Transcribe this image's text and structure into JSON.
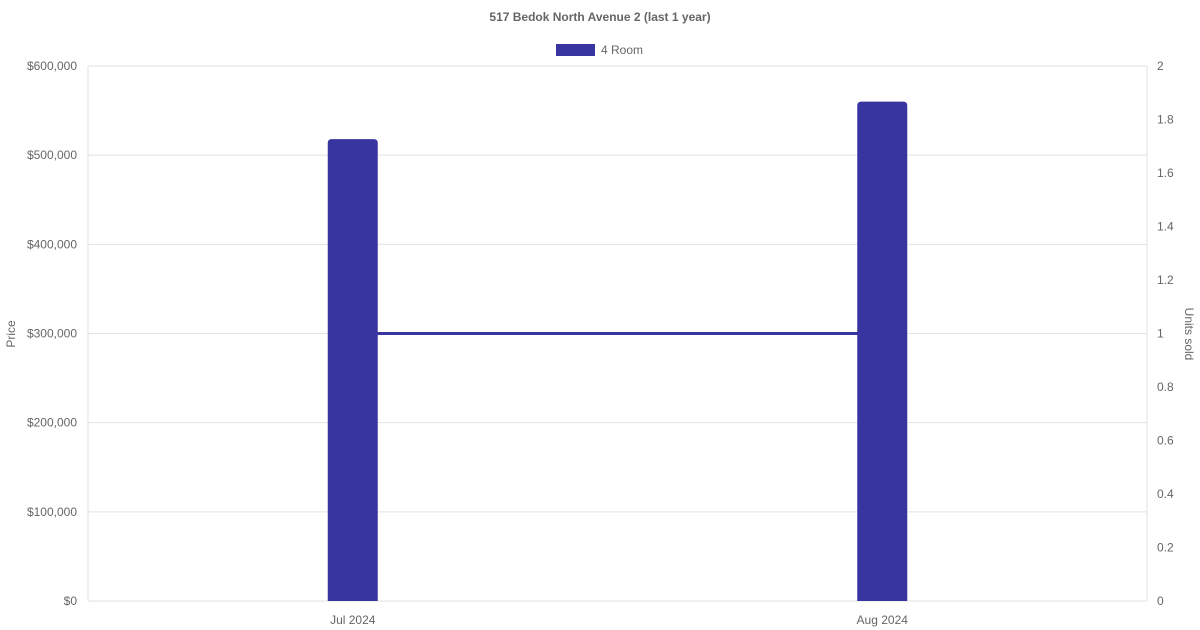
{
  "chart_data": {
    "type": "bar",
    "title": "517 Bedok North Avenue 2 (last 1 year)",
    "categories": [
      "Jul 2024",
      "Aug 2024"
    ],
    "series": [
      {
        "name": "4 Room",
        "type": "bar",
        "axis": "left",
        "values": [
          518000,
          560000
        ],
        "color": "#3935a0"
      },
      {
        "name": "4 Room",
        "type": "line",
        "axis": "right",
        "values": [
          1,
          1
        ],
        "color": "#3935a0"
      }
    ],
    "ylabel": "Price",
    "y2label": "Units sold",
    "ylim": [
      0,
      600000
    ],
    "y2lim": [
      0,
      2
    ],
    "yticks": [
      "$0",
      "$100,000",
      "$200,000",
      "$300,000",
      "$400,000",
      "$500,000",
      "$600,000"
    ],
    "y2ticks": [
      "0",
      "0.2",
      "0.4",
      "0.6",
      "0.8",
      "1",
      "1.2",
      "1.4",
      "1.6",
      "1.8",
      "2"
    ],
    "legend": {
      "label": "4 Room",
      "position": "top"
    },
    "grid": true
  }
}
